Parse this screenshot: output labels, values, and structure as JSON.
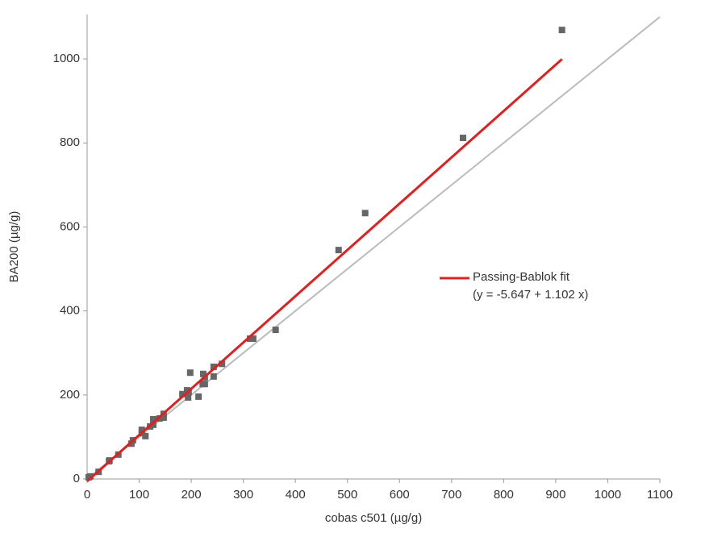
{
  "chart_data": {
    "type": "scatter",
    "x_label": "cobas c501 (µg/g)",
    "y_label": "BA200 (µg/g)",
    "xlim": [
      0,
      1100
    ],
    "xticks": [
      0,
      100,
      200,
      300,
      400,
      500,
      600,
      700,
      800,
      900,
      1000,
      1100
    ],
    "ylim": [
      0,
      1100
    ],
    "yticks": [
      0,
      200,
      400,
      600,
      800,
      1000
    ],
    "grid": false,
    "series": [
      {
        "color": "#666666",
        "x": [
          912,
          722,
          534,
          483,
          362,
          319,
          313,
          259,
          243,
          243,
          226,
          226,
          223,
          222,
          214,
          198,
          194,
          195,
          192,
          183,
          147,
          147,
          139,
          127,
          127,
          121,
          112,
          105,
          105,
          88,
          85,
          60,
          42,
          43,
          22,
          6,
          3
        ],
        "values": [
          1069,
          812,
          633,
          545,
          355,
          334,
          334,
          274,
          267,
          244,
          242,
          226,
          250,
          226,
          196,
          253,
          194,
          207,
          211,
          202,
          155,
          146,
          144,
          142,
          129,
          125,
          102,
          117,
          109,
          92,
          84,
          58,
          42,
          44,
          17,
          6,
          4
        ]
      }
    ],
    "fit": {
      "name": "Passing-Bablok fit",
      "equation": "(y = -5.647 + 1.102 x)",
      "intercept": -5.647,
      "slope": 1.102,
      "xrange": [
        0,
        912
      ],
      "color": "#e02020"
    },
    "identity": {
      "color": "#bbbbbb"
    }
  }
}
